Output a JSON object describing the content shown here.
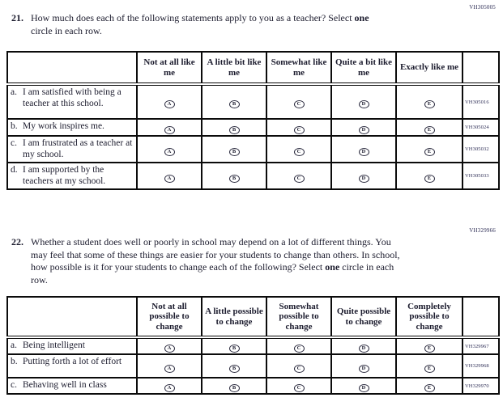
{
  "questions": [
    {
      "id": "q21",
      "number": "21.",
      "code": "VH305005",
      "text_1": "How much does each of the following statements apply to you as a teacher? Select ",
      "text_bold": "one",
      "text_2": " circle in each row.",
      "table": {
        "columns": [
          "Not at all like me",
          "A little bit like me",
          "Somewhat like me",
          "Quite a bit like me",
          "Exactly like me"
        ],
        "options": [
          "A",
          "B",
          "C",
          "D",
          "E"
        ],
        "rows": [
          {
            "letter": "a.",
            "text": "I am satisfied with being a teacher at this school.",
            "code": "VH305016"
          },
          {
            "letter": "b.",
            "text": "My work inspires me.",
            "code": "VH305024"
          },
          {
            "letter": "c.",
            "text": "I am frustrated as a teacher at my school.",
            "code": "VH305032"
          },
          {
            "letter": "d.",
            "text": "I am supported by the teachers at my school.",
            "code": "VH305033"
          }
        ]
      }
    },
    {
      "id": "q22",
      "number": "22.",
      "code": "VH329966",
      "text_1": "Whether a student does well or poorly in school may depend on a lot of different things. You may feel that some of these things are easier for your students to change than others. In school, how possible is it for your students to change each of the following? Select ",
      "text_bold": "one",
      "text_2": " circle in each row.",
      "table": {
        "columns": [
          "Not at all possible to change",
          "A little possible to change",
          "Somewhat possible to change",
          "Quite possible to change",
          "Completely possible to change"
        ],
        "options": [
          "A",
          "B",
          "C",
          "D",
          "E"
        ],
        "rows": [
          {
            "letter": "a.",
            "text": "Being intelligent",
            "code": "VH329967"
          },
          {
            "letter": "b.",
            "text": "Putting forth a lot of effort",
            "code": "VH329968"
          },
          {
            "letter": "c.",
            "text": "Behaving well in class",
            "code": "VH329970"
          }
        ]
      }
    }
  ],
  "colors": {
    "ink": "#1c1c2e",
    "code_ink": "#2d2d55",
    "border": "#0b0b0b"
  }
}
